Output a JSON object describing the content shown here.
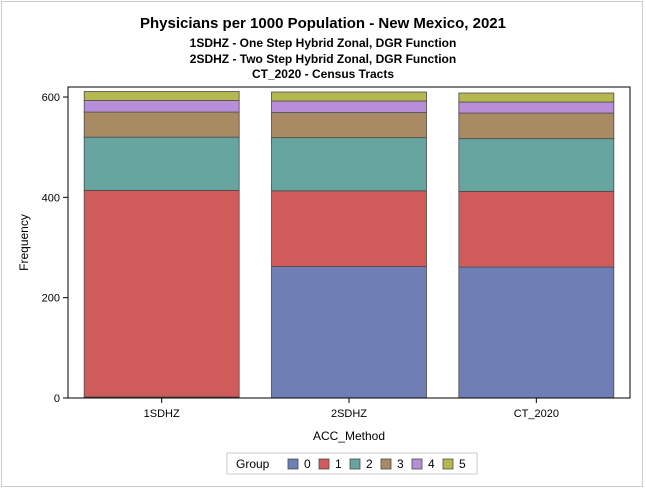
{
  "chart_data": {
    "type": "bar",
    "stacked": true,
    "title": "Physicians per 1000 Population - New Mexico, 2021",
    "subtitles": [
      "1SDHZ - One Step Hybrid Zonal, DGR Function",
      "2SDHZ - Two Step Hybrid Zonal, DGR Function",
      "CT_2020 - Census Tracts"
    ],
    "xlabel": "ACC_Method",
    "ylabel": "Frequency",
    "categories": [
      "1SDHZ",
      "2SDHZ",
      "CT_2020"
    ],
    "ylim": [
      0,
      620
    ],
    "yticks": [
      0,
      200,
      400,
      600
    ],
    "legend_title": "Group",
    "legend_position": "bottom",
    "series": [
      {
        "name": "0",
        "color": "#6f7fb5",
        "values": [
          2,
          262,
          261
        ]
      },
      {
        "name": "1",
        "color": "#d05b5b",
        "values": [
          412,
          151,
          151
        ]
      },
      {
        "name": "2",
        "color": "#66a5a0",
        "values": [
          106,
          106,
          105
        ]
      },
      {
        "name": "3",
        "color": "#a98b63",
        "values": [
          50,
          50,
          51
        ]
      },
      {
        "name": "4",
        "color": "#b88ed8",
        "values": [
          23,
          23,
          22
        ]
      },
      {
        "name": "5",
        "color": "#b5b84f",
        "values": [
          18,
          18,
          18
        ]
      }
    ]
  }
}
